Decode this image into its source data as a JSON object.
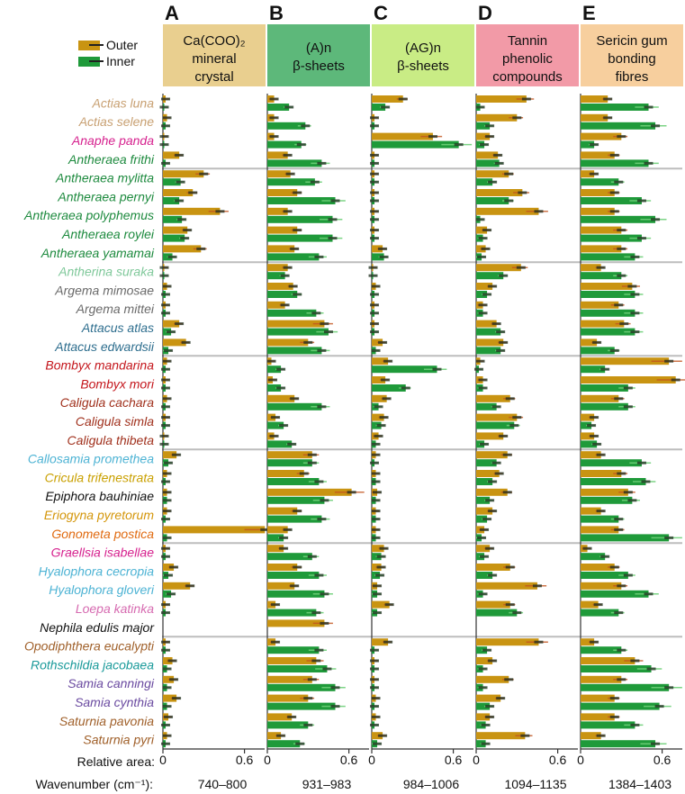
{
  "chart_data": {
    "type": "bar",
    "orientation": "horizontal",
    "legend": [
      {
        "name": "Outer",
        "color": "#c99412"
      },
      {
        "name": "Inner",
        "color": "#1f9a3a"
      }
    ],
    "row_label_x": "Relative area:",
    "wavenumber_label": "Wavenumber (cm⁻¹):",
    "xlim": [
      0,
      0.8
    ],
    "xticks": [
      0,
      0.6
    ],
    "xtick_labels": [
      "0",
      "0.6"
    ],
    "species": [
      {
        "name": "Actias luna",
        "color": "#c8a072"
      },
      {
        "name": "Actias selene",
        "color": "#c8a072"
      },
      {
        "name": "Anaphe panda",
        "color": "#d6218e"
      },
      {
        "name": "Antheraea frithi",
        "color": "#1d8a3e"
      },
      {
        "name": "Antheraea mylitta",
        "color": "#1d8a3e"
      },
      {
        "name": "Antheraea pernyi",
        "color": "#1d8a3e"
      },
      {
        "name": "Antheraea polyphemus",
        "color": "#1d8a3e"
      },
      {
        "name": "Antheraea roylei",
        "color": "#1d8a3e"
      },
      {
        "name": "Antheraea yamamai",
        "color": "#1d8a3e"
      },
      {
        "name": "Antherina suraka",
        "color": "#7fc89a"
      },
      {
        "name": "Argema mimosae",
        "color": "#6a6a6a"
      },
      {
        "name": "Argema mittei",
        "color": "#6a6a6a"
      },
      {
        "name": "Attacus atlas",
        "color": "#2e6e8e"
      },
      {
        "name": "Attacus edwardsii",
        "color": "#2e6e8e"
      },
      {
        "name": "Bombyx mandarina",
        "color": "#c4161c"
      },
      {
        "name": "Bombyx mori",
        "color": "#c4161c"
      },
      {
        "name": "Caligula cachara",
        "color": "#a0301c"
      },
      {
        "name": "Caligula simla",
        "color": "#a0301c"
      },
      {
        "name": "Caligula thibeta",
        "color": "#a0301c"
      },
      {
        "name": "Callosamia promethea",
        "color": "#4db3d4"
      },
      {
        "name": "Cricula trifenestrata",
        "color": "#c9a000"
      },
      {
        "name": "Epiphora bauhiniae",
        "color": "#111111"
      },
      {
        "name": "Eriogyna pyretorum",
        "color": "#d4960a"
      },
      {
        "name": "Gonometa postica",
        "color": "#e06a10"
      },
      {
        "name": "Graellsia isabellae",
        "color": "#d6218e"
      },
      {
        "name": "Hyalophora cecropia",
        "color": "#4db3d4"
      },
      {
        "name": "Hyalophora gloveri",
        "color": "#4db3d4"
      },
      {
        "name": "Loepa katinka",
        "color": "#d66ab0"
      },
      {
        "name": "Nephila edulis major",
        "color": "#111111"
      },
      {
        "name": "Opodiphthera eucalypti",
        "color": "#a0602a"
      },
      {
        "name": "Rothschildia jacobaea",
        "color": "#1a9a9a"
      },
      {
        "name": "Samia canningi",
        "color": "#6a4aa0"
      },
      {
        "name": "Samia cynthia",
        "color": "#6a4aa0"
      },
      {
        "name": "Saturnia pavonia",
        "color": "#a0602a"
      },
      {
        "name": "Saturnia pyri",
        "color": "#a0602a"
      }
    ],
    "group_separators_after": [
      3,
      8,
      13,
      18,
      23,
      28
    ],
    "panels": [
      {
        "letter": "A",
        "title_line1": "Ca(COO)₂",
        "title_line2": "mineral",
        "title_line3": "crystal",
        "header_color": "#e9cf8f",
        "wavenumber": "740–800",
        "outer": [
          0.02,
          0.03,
          0.01,
          0.12,
          0.3,
          0.22,
          0.42,
          0.18,
          0.28,
          0.01,
          0.03,
          0.02,
          0.12,
          0.17,
          0.03,
          0.02,
          0.03,
          0.02,
          0.01,
          0.1,
          0.03,
          0.03,
          0.03,
          0.75,
          0.02,
          0.08,
          0.2,
          0.02,
          null,
          0.02,
          0.07,
          0.08,
          0.1,
          0.04,
          0.03
        ],
        "inner": [
          0.01,
          0.02,
          0.01,
          0.02,
          0.13,
          0.12,
          0.14,
          0.16,
          0.07,
          0.01,
          0.02,
          0.02,
          0.06,
          0.04,
          0.02,
          0.02,
          0.02,
          0.02,
          0.01,
          0.04,
          0.02,
          0.03,
          0.02,
          0.03,
          0.02,
          0.04,
          0.06,
          0.02,
          null,
          0.02,
          0.03,
          0.03,
          0.03,
          0.02,
          0.02
        ]
      },
      {
        "letter": "B",
        "title_line1": "(A)n",
        "title_line2": "β-sheets",
        "title_line3": "",
        "header_color": "#5db87a",
        "wavenumber": "931–983",
        "outer": [
          0.05,
          0.05,
          0.05,
          0.15,
          0.17,
          0.22,
          0.15,
          0.22,
          0.2,
          0.15,
          0.19,
          0.13,
          0.42,
          0.3,
          0.03,
          0.04,
          0.2,
          0.06,
          0.05,
          0.33,
          0.27,
          0.62,
          0.22,
          0.15,
          0.12,
          0.22,
          0.2,
          0.06,
          0.42,
          0.06,
          0.36,
          0.33,
          0.3,
          0.18,
          0.1
        ],
        "inner": [
          0.16,
          0.28,
          0.25,
          0.4,
          0.35,
          0.5,
          0.48,
          0.48,
          0.38,
          0.13,
          0.22,
          0.36,
          0.45,
          0.4,
          0.1,
          0.1,
          0.4,
          0.12,
          0.18,
          0.33,
          0.38,
          0.42,
          0.4,
          0.12,
          0.33,
          0.38,
          0.42,
          0.36,
          null,
          0.38,
          0.44,
          0.5,
          0.5,
          0.3,
          0.24
        ]
      },
      {
        "letter": "C",
        "title_line1": "(AG)n",
        "title_line2": "β-sheets",
        "title_line3": "",
        "header_color": "#c9ec85",
        "wavenumber": "984–1006",
        "outer": [
          0.23,
          0.02,
          0.45,
          0.02,
          0.02,
          0.02,
          0.02,
          0.02,
          0.08,
          0.01,
          0.03,
          0.02,
          0.02,
          0.08,
          0.12,
          0.1,
          0.11,
          0.09,
          0.05,
          0.03,
          0.03,
          0.04,
          0.03,
          0.03,
          0.09,
          0.07,
          0.04,
          0.13,
          null,
          0.12,
          0.02,
          0.02,
          0.03,
          0.03,
          0.08
        ],
        "inner": [
          0.1,
          0.02,
          0.64,
          0.02,
          0.02,
          0.02,
          0.02,
          0.02,
          0.09,
          0.01,
          0.02,
          0.02,
          0.02,
          0.03,
          0.48,
          0.25,
          0.05,
          0.07,
          0.03,
          0.02,
          0.03,
          0.03,
          0.03,
          0.03,
          0.07,
          0.06,
          0.04,
          0.04,
          null,
          0.02,
          0.02,
          0.02,
          0.02,
          0.02,
          0.04
        ]
      },
      {
        "letter": "D",
        "title_line1": "Tannin",
        "title_line2": "phenolic",
        "title_line3": "compounds",
        "header_color": "#f29aa7",
        "wavenumber": "1094–1135",
        "outer": [
          0.37,
          0.3,
          0.1,
          0.16,
          0.24,
          0.34,
          0.46,
          0.08,
          0.07,
          0.33,
          0.12,
          0.05,
          0.15,
          0.2,
          0.03,
          0.05,
          0.25,
          0.3,
          0.2,
          0.23,
          0.17,
          0.23,
          0.12,
          0.06,
          0.1,
          0.25,
          0.45,
          0.25,
          null,
          0.46,
          0.12,
          0.24,
          0.18,
          0.1,
          0.36
        ],
        "inner": [
          0.03,
          0.1,
          0.06,
          0.17,
          0.12,
          0.24,
          0.03,
          0.05,
          0.04,
          0.2,
          0.08,
          0.05,
          0.18,
          0.18,
          0.02,
          0.05,
          0.15,
          0.28,
          0.06,
          0.15,
          0.12,
          0.1,
          0.08,
          0.04,
          0.06,
          0.12,
          0.05,
          0.3,
          null,
          0.08,
          0.05,
          0.05,
          0.1,
          0.07,
          0.07
        ]
      },
      {
        "letter": "E",
        "title_line1": "Sericin gum",
        "title_line2": "bonding",
        "title_line3": "fibres",
        "header_color": "#f7cf9e",
        "wavenumber": "1384–1403",
        "outer": [
          0.2,
          0.2,
          0.3,
          0.25,
          0.1,
          0.25,
          0.25,
          0.3,
          0.3,
          0.15,
          0.38,
          0.28,
          0.32,
          0.12,
          0.65,
          0.7,
          0.28,
          0.1,
          0.1,
          0.15,
          0.3,
          0.35,
          0.15,
          0.28,
          0.05,
          0.25,
          0.3,
          0.13,
          null,
          0.1,
          0.4,
          0.3,
          0.25,
          0.25,
          0.15
        ],
        "inner": [
          0.5,
          0.55,
          0.1,
          0.5,
          0.28,
          0.45,
          0.55,
          0.45,
          0.4,
          0.3,
          0.4,
          0.4,
          0.4,
          0.25,
          0.18,
          0.35,
          0.35,
          0.08,
          0.12,
          0.45,
          0.48,
          0.38,
          0.28,
          0.65,
          0.18,
          0.35,
          0.5,
          0.28,
          null,
          0.3,
          0.52,
          0.65,
          0.58,
          0.4,
          0.55
        ]
      }
    ]
  }
}
